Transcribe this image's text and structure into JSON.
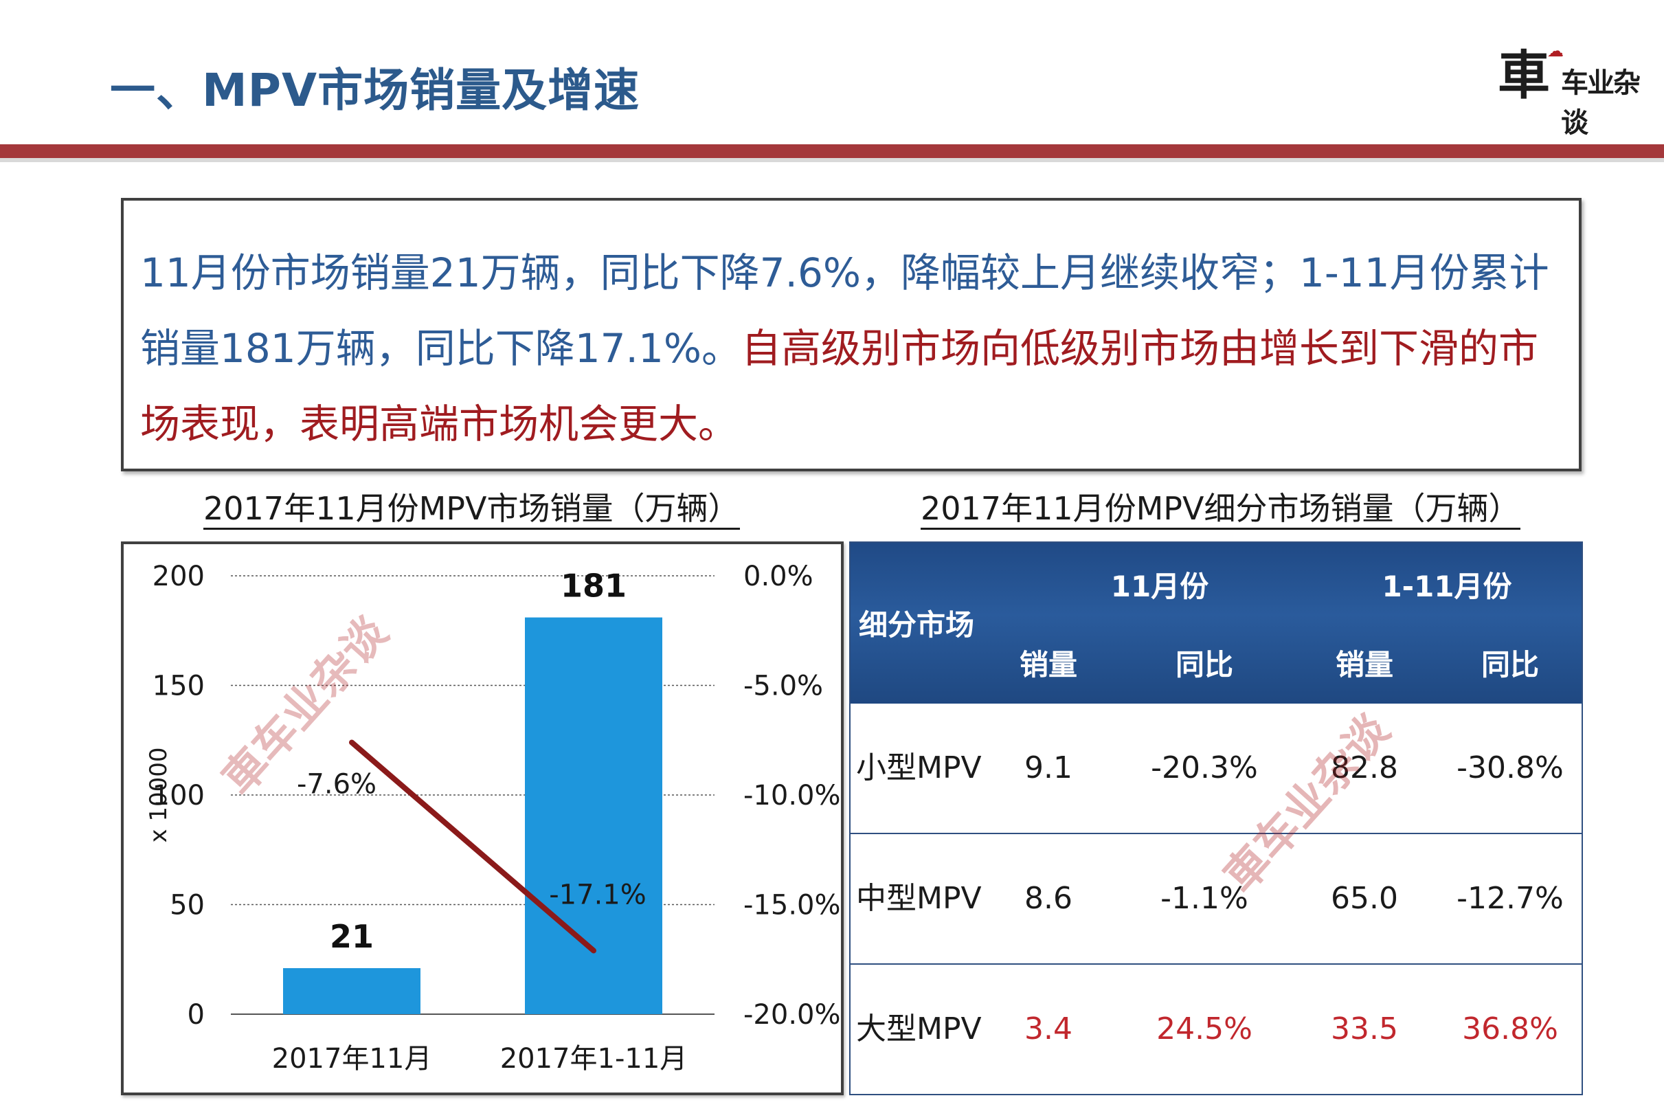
{
  "header": {
    "title": "一、MPV市场销量及增速",
    "logo_main": "車",
    "logo_sub": "车业杂谈"
  },
  "summary": {
    "text_blue": "11月份市场销量21万辆，同比下降7.6%，降幅较上月继续收窄；1-11月份累计销量181万辆，同比下降17.1%。",
    "text_red": "自高级别市场向低级别市场由增长到下滑的市场表现，表明高端市场机会更大。"
  },
  "colors": {
    "title": "#2c5a8c",
    "band": "#a4383b",
    "bar": "#1e96dc",
    "line": "#8b1a1a",
    "text_red": "#c1272d",
    "table_header": "#204a86"
  },
  "chart_data": [
    {
      "type": "bar",
      "title": "2017年11月份MPV市场销量（万辆）",
      "categories": [
        "2017年11月",
        "2017年1-11月"
      ],
      "series": [
        {
          "values": [
            21,
            181
          ],
          "data_labels": [
            "21",
            "181"
          ],
          "axis": "left"
        },
        {
          "type": "line",
          "values": [
            -7.6,
            -17.1
          ],
          "data_labels": [
            "-7.6%",
            "-17.1%"
          ],
          "axis": "right"
        }
      ],
      "ylabel": "x 10000",
      "ylim": [
        0,
        200
      ],
      "yticks": [
        "0",
        "50",
        "100",
        "150",
        "200"
      ],
      "y2lim": [
        -20,
        0
      ],
      "y2ticks": [
        "-20.0%",
        "-15.0%",
        "-10.0%",
        "-5.0%",
        "0.0%"
      ],
      "grid": true,
      "watermark": "車车业杂谈"
    },
    {
      "type": "table",
      "title": "2017年11月份MPV细分市场销量（万辆）",
      "header": {
        "segment": "细分市场",
        "groups": [
          "11月份",
          "1-11月份"
        ],
        "sub": [
          "销量",
          "同比",
          "销量",
          "同比"
        ]
      },
      "rows": [
        {
          "segment": "小型MPV",
          "values": [
            "9.1",
            "-20.3%",
            "82.8",
            "-30.8%"
          ]
        },
        {
          "segment": "中型MPV",
          "values": [
            "8.6",
            "-1.1%",
            "65.0",
            "-12.7%"
          ]
        },
        {
          "segment": "大型MPV",
          "values": [
            "3.4",
            "24.5%",
            "33.5",
            "36.8%"
          ]
        }
      ],
      "highlight_row": "大型MPV"
    }
  ]
}
